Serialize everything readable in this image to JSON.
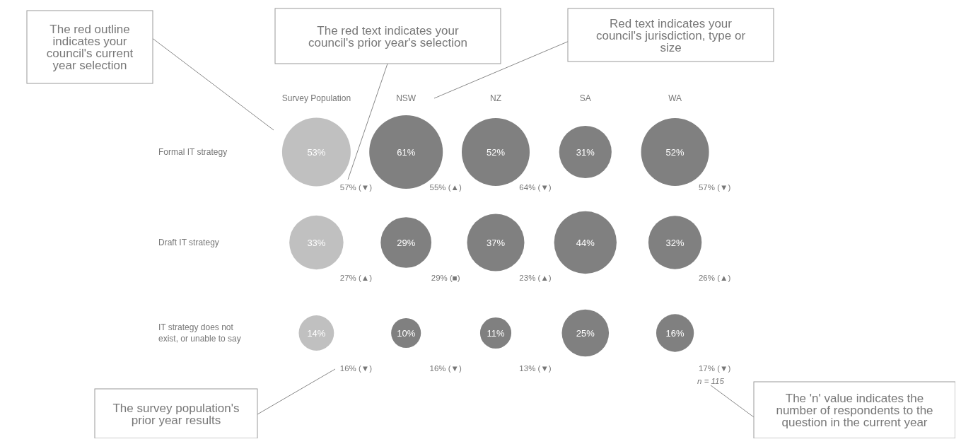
{
  "chart_data": {
    "type": "heatmap",
    "categories": [
      "Survey Population",
      "NSW",
      "NZ",
      "SA",
      "WA"
    ],
    "y_categories": [
      "Formal IT strategy",
      "Draft IT strategy",
      "IT strategy does not exist, or unable to say"
    ],
    "cells": [
      [
        53,
        61,
        52,
        31,
        52
      ],
      [
        33,
        29,
        37,
        44,
        32
      ],
      [
        14,
        10,
        11,
        25,
        16
      ]
    ],
    "colors": [
      "#c0c0c0",
      "#808080",
      "#808080",
      "#808080",
      "#808080"
    ],
    "cell_labels": [
      [
        "53%",
        "61%",
        "52%",
        "31%",
        "52%"
      ],
      [
        "33%",
        "29%",
        "37%",
        "44%",
        "32%"
      ],
      [
        "14%",
        "10%",
        "11%",
        "25%",
        "16%"
      ]
    ],
    "annotations": [
      "The red outline indicates your council's current year selection",
      "The red text indicates your council's prior year's selection",
      "Red text indicates your council's jurisdiction, type or size",
      "The survey population's prior year results",
      "The 'n' value indicates the number of respondents to the question in the current year",
      "n = 115",
      "57% (▼)",
      "55% (▲)",
      "64% (▼)",
      "57% (▼)",
      "27% (▲)",
      "29% (■)",
      "23% (▲)",
      "26% (▲)",
      "16% (▼)",
      "16% (▼)",
      "13% (▼)",
      "17% (▼)"
    ]
  }
}
